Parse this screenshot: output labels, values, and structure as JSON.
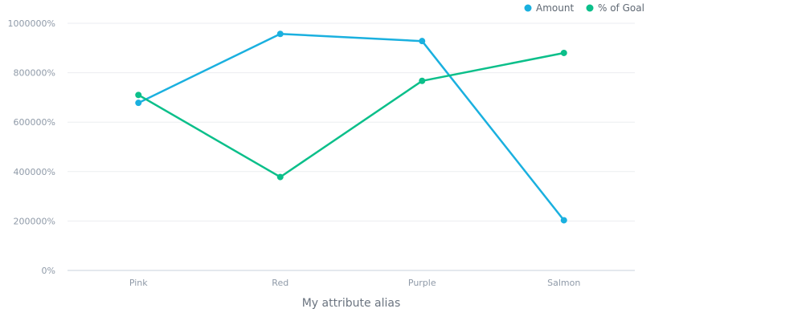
{
  "chart_data": {
    "type": "line",
    "title": "",
    "xlabel": "My attribute alias",
    "ylabel": "",
    "categories": [
      "Pink",
      "Red",
      "Purple",
      "Salmon"
    ],
    "y_tick_labels": [
      "0%",
      "200000%",
      "400000%",
      "600000%",
      "800000%",
      "1000000%"
    ],
    "ylim": [
      0,
      1000000
    ],
    "grid": true,
    "legend_position": "top-right",
    "series": [
      {
        "name": "Amount",
        "color": "#1ab0df",
        "values": [
          678000,
          957000,
          928000,
          203000
        ]
      },
      {
        "name": "% of Goal",
        "color": "#0bbf8a",
        "values": [
          710000,
          378000,
          767000,
          880000
        ]
      }
    ]
  }
}
